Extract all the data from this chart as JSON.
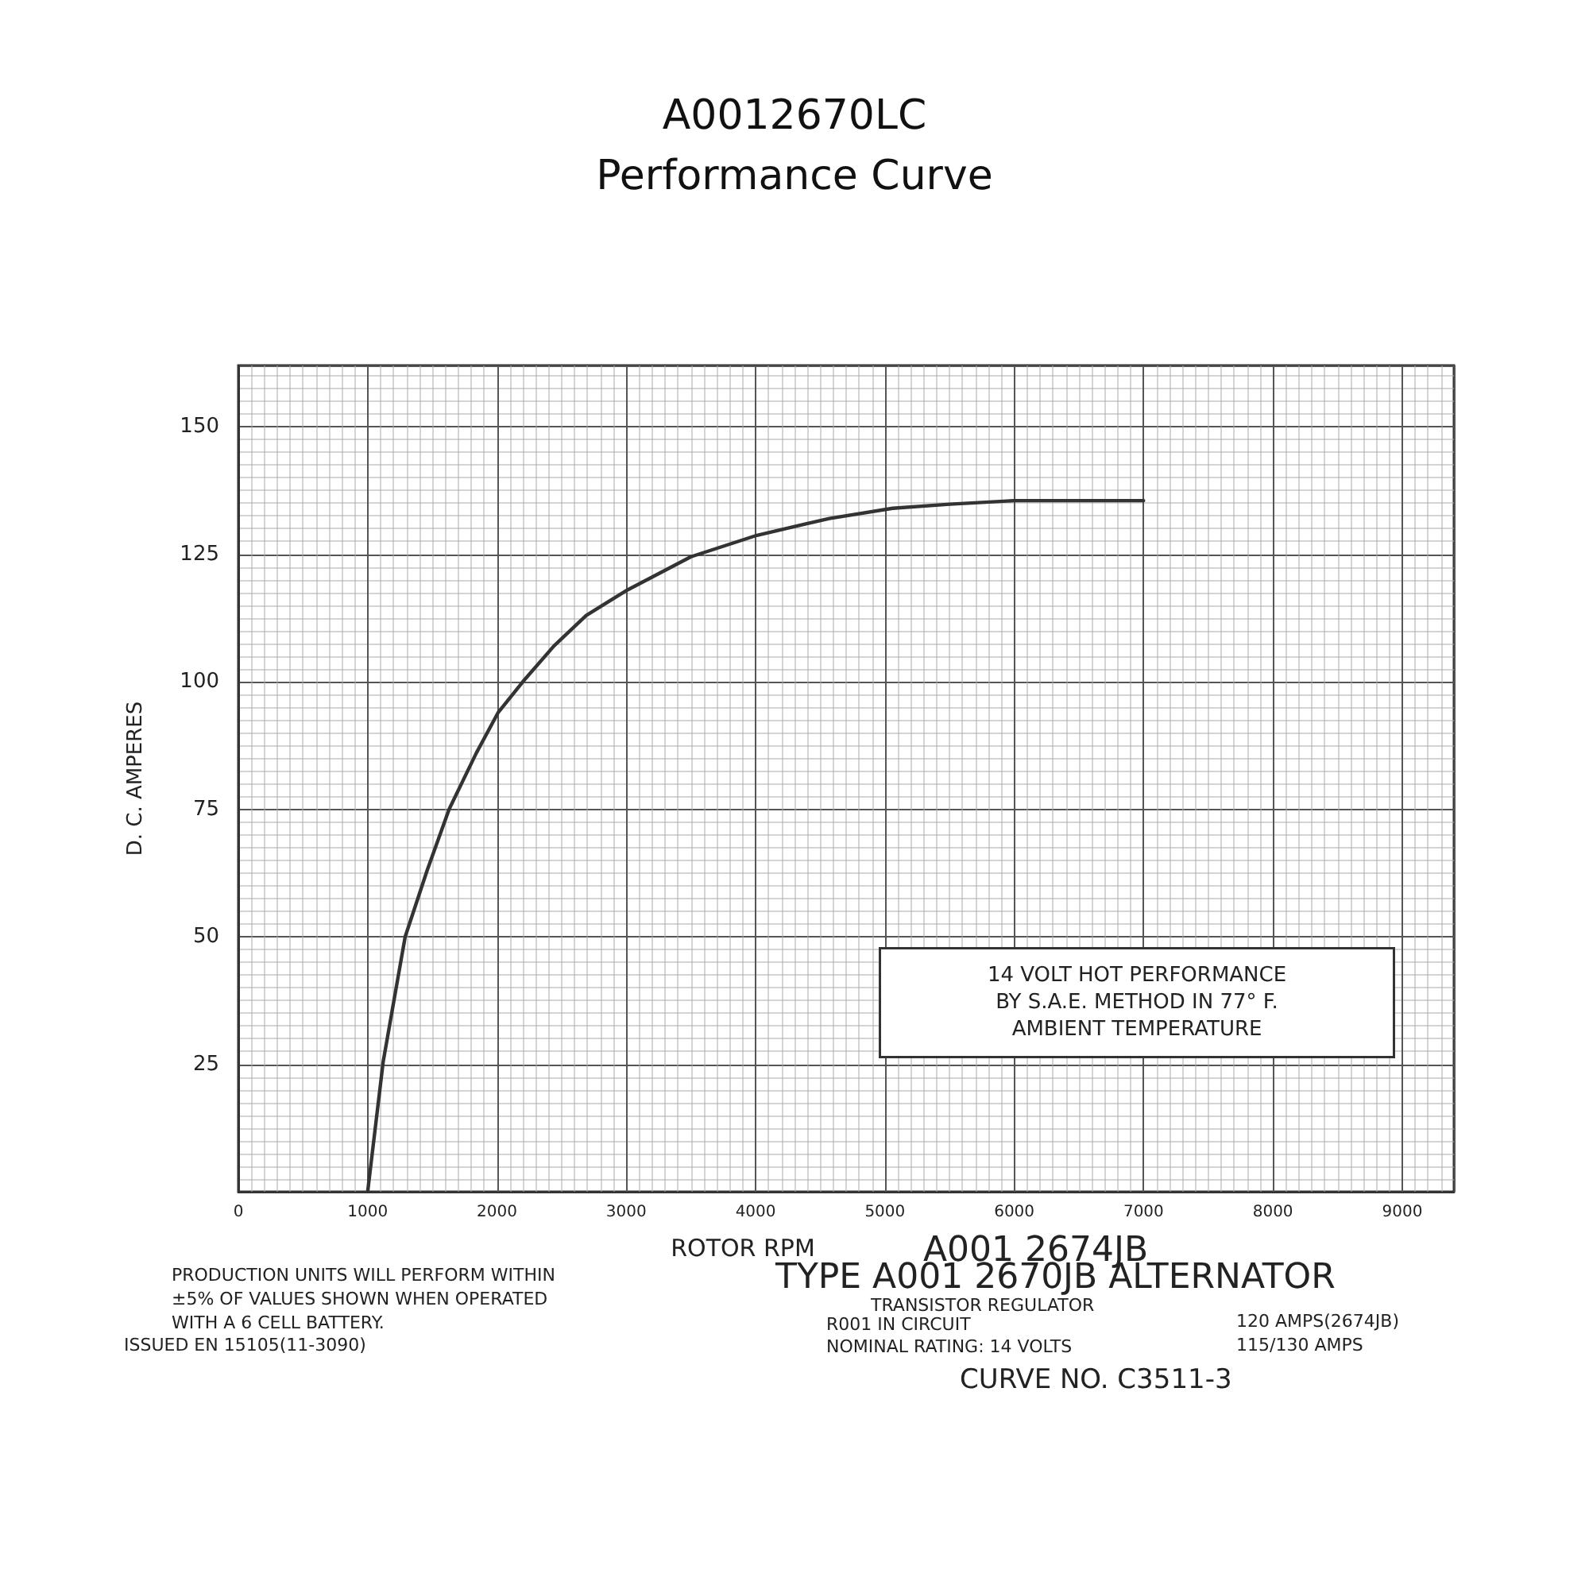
{
  "chart_data": {
    "type": "line",
    "title": "A0012670LC",
    "subtitle": "Performance Curve",
    "xlabel": "ROTOR RPM",
    "ylabel": "D. C. AMPERES",
    "x": [
      1000,
      1120,
      1290,
      1460,
      1630,
      1840,
      2010,
      2200,
      2440,
      2690,
      3010,
      3500,
      4010,
      4570,
      5060,
      5500,
      6000,
      7000
    ],
    "series": [
      {
        "color": "#333333",
        "values": [
          0,
          25.5,
          50,
          63,
          75,
          86,
          94,
          100,
          107,
          113,
          118,
          124.5,
          128.7,
          132,
          134,
          134.8,
          135.5,
          135.5
        ]
      }
    ],
    "xlim": [
      0,
      9400
    ],
    "xticks": [
      0,
      1000,
      2000,
      3000,
      4000,
      5000,
      6000,
      7000,
      8000,
      9000
    ],
    "ylim": [
      0,
      162
    ],
    "yticks": [
      25,
      50,
      75,
      100,
      125,
      150
    ],
    "grid": true,
    "marker": "none",
    "line_style": "solid",
    "annotations": [
      "14 VOLT HOT PERFORMANCE\nBY S.A.E. METHOD IN 77° F.\nAMBIENT TEMPERATURE",
      "PRODUCTION UNITS WILL PERFORM WITHIN\n±5% OF VALUES SHOWN WHEN OPERATED\nWITH A 6 CELL BATTERY.",
      "ISSUED EN 15105(11-3090)",
      "A001 2674JB",
      "TYPE A001 2670JB ALTERNATOR",
      "TRANSISTOR REGULATOR",
      "R001 IN CIRCUIT",
      "NOMINAL RATING: 14 VOLTS",
      "120 AMPS(2674JB)\n115/130 AMPS",
      "CURVE NO. C3511-3"
    ]
  }
}
